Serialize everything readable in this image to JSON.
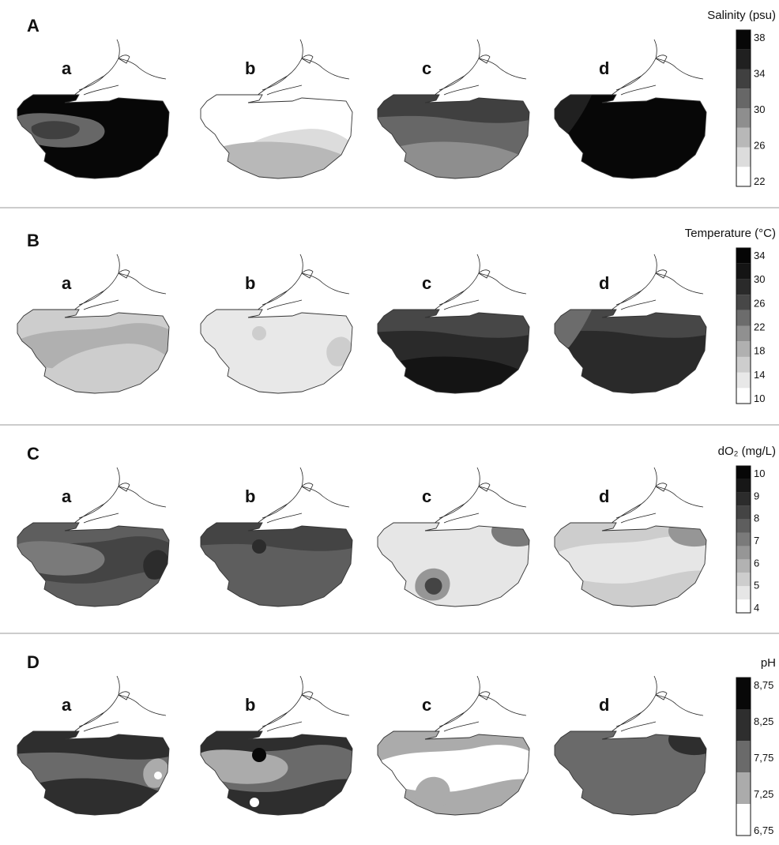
{
  "rows": [
    {
      "id": "salinity",
      "letter": "A",
      "colorbar_title": "Salinity (psu)",
      "ticks": [
        "38",
        "34",
        "30",
        "26",
        "22"
      ],
      "levels": [
        "#ffffff",
        "#dcdcdc",
        "#b8b8b8",
        "#8e8e8e",
        "#676767",
        "#404040",
        "#202020",
        "#070707"
      ],
      "panels": [
        {
          "letter": "a",
          "base": 7,
          "blobs": [
            {
              "level": 4,
              "shape": "west-tongue"
            },
            {
              "level": 5,
              "shape": "west-inner"
            }
          ]
        },
        {
          "letter": "b",
          "base": 0,
          "blobs": [
            {
              "level": 1,
              "shape": "south-lobe"
            },
            {
              "level": 2,
              "shape": "south-band"
            }
          ]
        },
        {
          "letter": "c",
          "base": 4,
          "blobs": [
            {
              "level": 5,
              "shape": "north-band"
            },
            {
              "level": 3,
              "shape": "south-band"
            }
          ]
        },
        {
          "letter": "d",
          "base": 7,
          "blobs": [
            {
              "level": 6,
              "shape": "west-tip"
            }
          ]
        }
      ]
    },
    {
      "id": "temperature",
      "letter": "B",
      "colorbar_title": "Temperature (°C)",
      "ticks": [
        "34",
        "30",
        "26",
        "22",
        "18",
        "14",
        "10"
      ],
      "levels": [
        "#ffffff",
        "#e8e8e8",
        "#cdcdcd",
        "#b0b0b0",
        "#909090",
        "#6c6c6c",
        "#474747",
        "#2a2a2a",
        "#141414",
        "#050505"
      ],
      "panels": [
        {
          "letter": "a",
          "base": 2,
          "blobs": [
            {
              "level": 3,
              "shape": "center-band"
            },
            {
              "level": 2,
              "shape": "south-lobe"
            }
          ]
        },
        {
          "letter": "b",
          "base": 1,
          "blobs": [
            {
              "level": 2,
              "shape": "east-spot"
            },
            {
              "level": 2,
              "shape": "dot-center"
            }
          ]
        },
        {
          "letter": "c",
          "base": 7,
          "blobs": [
            {
              "level": 6,
              "shape": "north-band"
            },
            {
              "level": 8,
              "shape": "south-band"
            }
          ]
        },
        {
          "letter": "d",
          "base": 7,
          "blobs": [
            {
              "level": 6,
              "shape": "north-band"
            },
            {
              "level": 5,
              "shape": "west-tip"
            }
          ]
        }
      ]
    },
    {
      "id": "oxygen",
      "letter": "C",
      "colorbar_title": "dO₂ (mg/L)",
      "ticks": [
        "10",
        "9",
        "8",
        "7",
        "6",
        "5",
        "4"
      ],
      "levels": [
        "#ffffff",
        "#e6e6e6",
        "#cdcdcd",
        "#b2b2b2",
        "#969696",
        "#7a7a7a",
        "#5e5e5e",
        "#444444",
        "#2c2c2c",
        "#171717",
        "#070707"
      ],
      "panels": [
        {
          "letter": "a",
          "base": 6,
          "blobs": [
            {
              "level": 7,
              "shape": "center-band"
            },
            {
              "level": 5,
              "shape": "west-tongue"
            },
            {
              "level": 8,
              "shape": "east-spot"
            }
          ]
        },
        {
          "letter": "b",
          "base": 6,
          "blobs": [
            {
              "level": 7,
              "shape": "north-band"
            },
            {
              "level": 8,
              "shape": "dot-center"
            }
          ]
        },
        {
          "letter": "c",
          "base": 1,
          "blobs": [
            {
              "level": 4,
              "shape": "south-spot"
            },
            {
              "level": 7,
              "shape": "south-core"
            },
            {
              "level": 5,
              "shape": "ne-spot"
            }
          ]
        },
        {
          "letter": "d",
          "base": 2,
          "blobs": [
            {
              "level": 1,
              "shape": "center-band"
            },
            {
              "level": 4,
              "shape": "ne-spot"
            }
          ]
        }
      ]
    },
    {
      "id": "ph",
      "letter": "D",
      "colorbar_title": "pH",
      "ticks": [
        "8,75",
        "8,25",
        "7,75",
        "7,25",
        "6,75"
      ],
      "levels": [
        "#ffffff",
        "#ababab",
        "#6a6a6a",
        "#2e2e2e",
        "#080808"
      ],
      "panels": [
        {
          "letter": "a",
          "base": 2,
          "blobs": [
            {
              "level": 3,
              "shape": "north-band"
            },
            {
              "level": 3,
              "shape": "south-band"
            },
            {
              "level": 1,
              "shape": "east-spot"
            },
            {
              "level": 0,
              "shape": "dot-east"
            }
          ]
        },
        {
          "letter": "b",
          "base": 3,
          "blobs": [
            {
              "level": 2,
              "shape": "center-band"
            },
            {
              "level": 1,
              "shape": "west-tongue"
            },
            {
              "level": 4,
              "shape": "dot-center"
            },
            {
              "level": 0,
              "shape": "dot-south"
            }
          ]
        },
        {
          "letter": "c",
          "base": 1,
          "blobs": [
            {
              "level": 0,
              "shape": "center-band"
            },
            {
              "level": 0,
              "shape": "dot-west"
            },
            {
              "level": 1,
              "shape": "south-spot"
            }
          ]
        },
        {
          "letter": "d",
          "base": 2,
          "blobs": [
            {
              "level": 3,
              "shape": "ne-spot"
            }
          ]
        }
      ]
    }
  ]
}
